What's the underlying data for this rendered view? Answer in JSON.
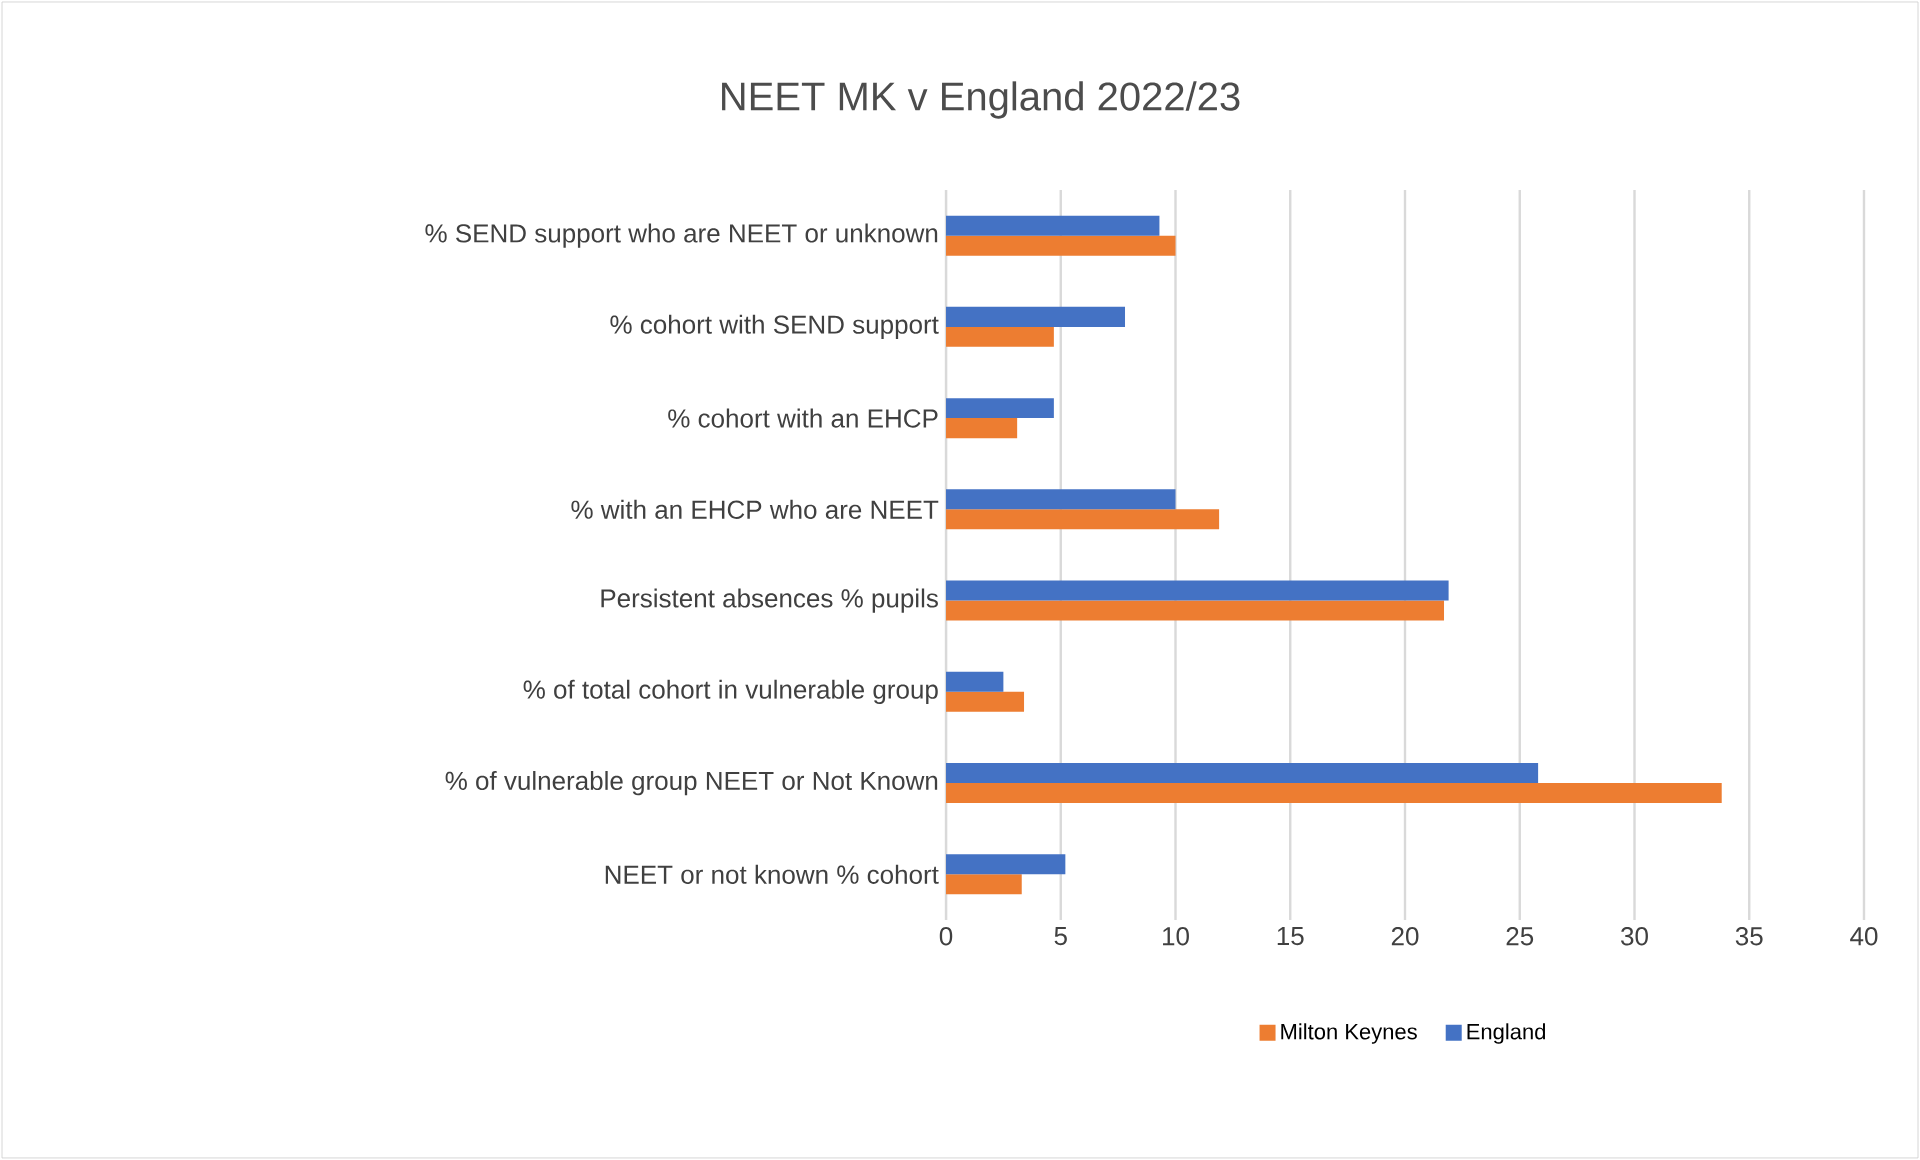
{
  "chart_data": {
    "type": "bar",
    "orientation": "horizontal",
    "title": "NEET MK v England 2022/23",
    "categories": [
      "% SEND support who are NEET or unknown",
      "% cohort with SEND support",
      "% cohort with an EHCP",
      "% with an EHCP who are NEET",
      "Persistent absences % pupils",
      "% of total cohort in vulnerable group",
      "% of vulnerable group NEET or Not Known",
      "NEET or not known % cohort"
    ],
    "series": [
      {
        "name": "Milton Keynes",
        "color": "#ed7d31",
        "values": [
          10.0,
          4.7,
          3.1,
          11.9,
          21.7,
          3.4,
          33.8,
          3.3
        ]
      },
      {
        "name": "England",
        "color": "#4472c4",
        "values": [
          9.3,
          7.8,
          4.7,
          10.0,
          21.9,
          2.5,
          25.8,
          5.2
        ]
      }
    ],
    "xlim": [
      0,
      40
    ],
    "xticks": [
      0,
      5,
      10,
      15,
      20,
      25,
      30,
      35,
      40
    ],
    "grid": "x",
    "legend": "bottom"
  }
}
